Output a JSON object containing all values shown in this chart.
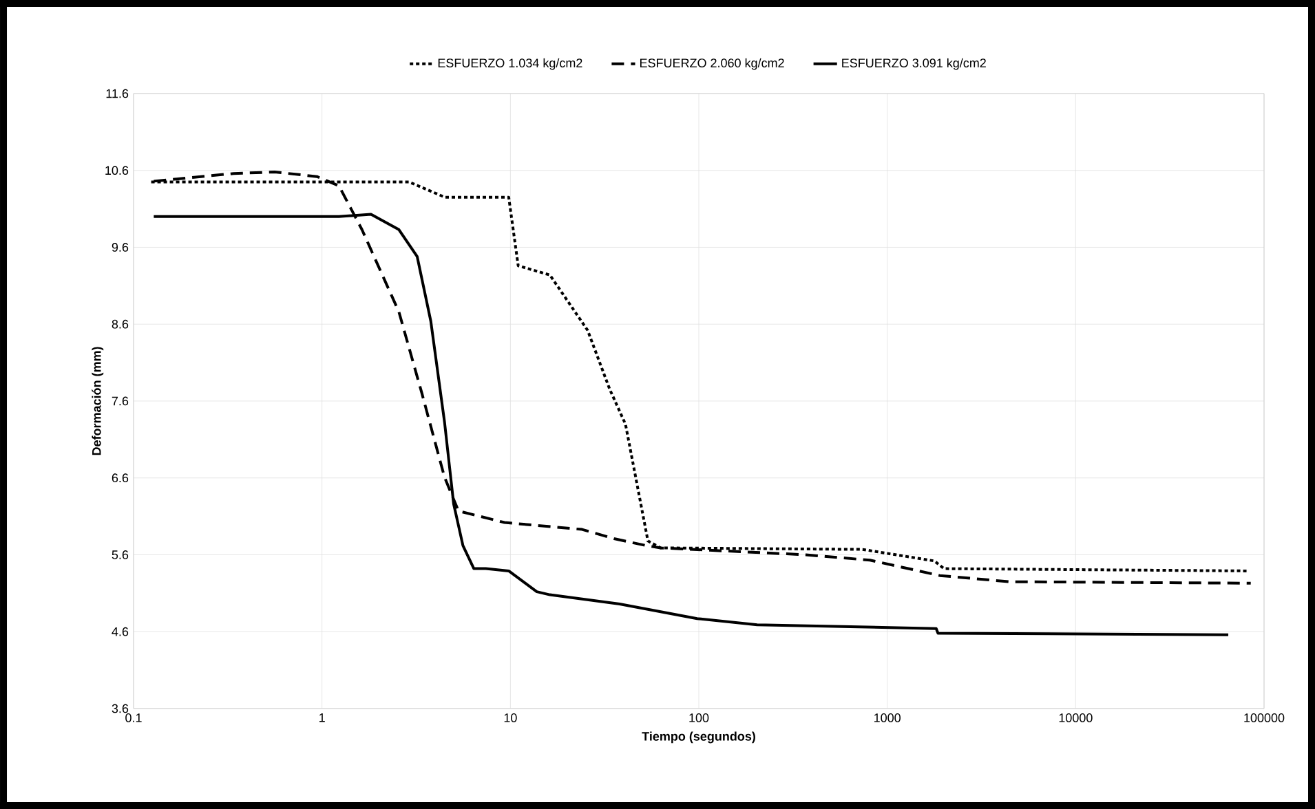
{
  "chart_data": {
    "type": "line",
    "xlabel": "Tiempo (segundos)",
    "ylabel": "Deformación (mm)",
    "log": "x",
    "grid": true,
    "legend": "top",
    "xlim": [
      0.1,
      100000
    ],
    "ylim": [
      3.6,
      11.6
    ],
    "xticks": [
      0.1,
      1,
      10,
      100,
      1000,
      10000,
      100000
    ],
    "yticks": [
      3.6,
      4.6,
      5.6,
      6.6,
      7.6,
      8.6,
      9.6,
      10.6,
      11.6
    ],
    "series": [
      {
        "name": "ESFUERZO 1.034 kg/cm2",
        "color": "#000000",
        "line_style": "dotted",
        "x": [
          0.124,
          1.5,
          2.9,
          4.5,
          9.8,
          11,
          16.2,
          25.7,
          33.7,
          40.8,
          53.7,
          62.7,
          740,
          1780,
          2000,
          83000
        ],
        "values": [
          10.45,
          10.45,
          10.45,
          10.25,
          10.25,
          9.36,
          9.24,
          8.52,
          7.75,
          7.3,
          5.78,
          5.69,
          5.67,
          5.52,
          5.42,
          5.39
        ]
      },
      {
        "name": "ESFUERZO 2.060 kg/cm2",
        "color": "#000000",
        "line_style": "dashed",
        "x": [
          0.128,
          0.34,
          0.56,
          0.94,
          1.23,
          1.63,
          2.56,
          3.4,
          4.47,
          5.3,
          9.3,
          24,
          35.5,
          52.5,
          62.7,
          370,
          810,
          1900,
          4400,
          85000
        ],
        "values": [
          10.46,
          10.56,
          10.58,
          10.52,
          10.4,
          9.83,
          8.76,
          7.69,
          6.61,
          6.17,
          6.02,
          5.93,
          5.81,
          5.72,
          5.69,
          5.6,
          5.53,
          5.33,
          5.25,
          5.23
        ]
      },
      {
        "name": "ESFUERZO 3.091 kg/cm2",
        "color": "#000000",
        "line_style": "solid",
        "x": [
          0.128,
          1.23,
          1.82,
          2.56,
          3.2,
          3.78,
          4.47,
          5.0,
          5.6,
          6.4,
          7.4,
          9.8,
          13.8,
          16.2,
          38,
          98,
          204,
          1820,
          1860,
          64600
        ],
        "values": [
          10.0,
          10.0,
          10.03,
          9.83,
          9.48,
          8.64,
          7.33,
          6.26,
          5.72,
          5.42,
          5.42,
          5.39,
          5.12,
          5.08,
          4.96,
          4.77,
          4.69,
          4.64,
          4.58,
          4.56
        ]
      }
    ]
  }
}
